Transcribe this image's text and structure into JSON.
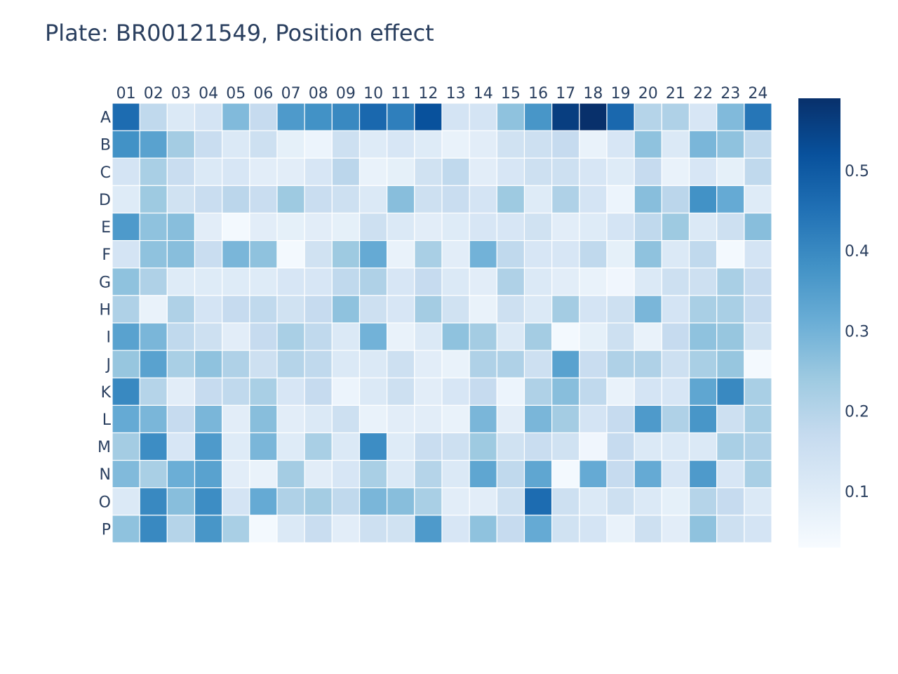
{
  "chart_data": {
    "type": "heatmap",
    "title": "Plate: BR00121549, Position effect",
    "x_categories": [
      "01",
      "02",
      "03",
      "04",
      "05",
      "06",
      "07",
      "08",
      "09",
      "10",
      "11",
      "12",
      "13",
      "14",
      "15",
      "16",
      "17",
      "18",
      "19",
      "20",
      "21",
      "22",
      "23",
      "24"
    ],
    "y_categories": [
      "A",
      "B",
      "C",
      "D",
      "E",
      "F",
      "G",
      "H",
      "I",
      "J",
      "K",
      "L",
      "M",
      "N",
      "O",
      "P"
    ],
    "z": [
      [
        0.46,
        0.18,
        0.11,
        0.13,
        0.28,
        0.17,
        0.36,
        0.38,
        0.4,
        0.47,
        0.42,
        0.52,
        0.13,
        0.13,
        0.26,
        0.37,
        0.56,
        0.59,
        0.47,
        0.2,
        0.21,
        0.12,
        0.28,
        0.44
      ],
      [
        0.38,
        0.34,
        0.23,
        0.16,
        0.11,
        0.15,
        0.08,
        0.06,
        0.15,
        0.1,
        0.12,
        0.1,
        0.07,
        0.09,
        0.14,
        0.15,
        0.17,
        0.07,
        0.12,
        0.26,
        0.11,
        0.29,
        0.26,
        0.18
      ],
      [
        0.13,
        0.22,
        0.16,
        0.11,
        0.12,
        0.09,
        0.09,
        0.12,
        0.19,
        0.07,
        0.08,
        0.14,
        0.18,
        0.09,
        0.12,
        0.15,
        0.15,
        0.12,
        0.1,
        0.17,
        0.07,
        0.12,
        0.08,
        0.18
      ],
      [
        0.1,
        0.24,
        0.14,
        0.16,
        0.19,
        0.16,
        0.24,
        0.16,
        0.15,
        0.11,
        0.27,
        0.15,
        0.16,
        0.13,
        0.24,
        0.1,
        0.21,
        0.13,
        0.06,
        0.27,
        0.19,
        0.38,
        0.32,
        0.1
      ],
      [
        0.36,
        0.26,
        0.27,
        0.09,
        0.04,
        0.09,
        0.08,
        0.09,
        0.08,
        0.15,
        0.11,
        0.09,
        0.1,
        0.12,
        0.12,
        0.14,
        0.09,
        0.1,
        0.13,
        0.18,
        0.24,
        0.11,
        0.15,
        0.27
      ],
      [
        0.13,
        0.26,
        0.27,
        0.16,
        0.29,
        0.26,
        0.04,
        0.14,
        0.24,
        0.32,
        0.07,
        0.22,
        0.09,
        0.3,
        0.18,
        0.12,
        0.12,
        0.18,
        0.08,
        0.26,
        0.11,
        0.18,
        0.04,
        0.13
      ],
      [
        0.26,
        0.21,
        0.1,
        0.1,
        0.1,
        0.1,
        0.12,
        0.12,
        0.18,
        0.21,
        0.12,
        0.17,
        0.11,
        0.09,
        0.21,
        0.11,
        0.09,
        0.07,
        0.05,
        0.11,
        0.15,
        0.15,
        0.22,
        0.17
      ],
      [
        0.21,
        0.07,
        0.21,
        0.13,
        0.17,
        0.18,
        0.14,
        0.17,
        0.26,
        0.15,
        0.12,
        0.23,
        0.14,
        0.07,
        0.15,
        0.11,
        0.23,
        0.13,
        0.15,
        0.29,
        0.13,
        0.22,
        0.22,
        0.17
      ],
      [
        0.34,
        0.29,
        0.18,
        0.15,
        0.09,
        0.17,
        0.22,
        0.18,
        0.11,
        0.3,
        0.07,
        0.11,
        0.26,
        0.23,
        0.11,
        0.23,
        0.04,
        0.08,
        0.15,
        0.07,
        0.17,
        0.26,
        0.25,
        0.14
      ],
      [
        0.25,
        0.34,
        0.22,
        0.26,
        0.21,
        0.15,
        0.2,
        0.18,
        0.11,
        0.11,
        0.15,
        0.09,
        0.07,
        0.21,
        0.21,
        0.15,
        0.34,
        0.16,
        0.21,
        0.21,
        0.15,
        0.22,
        0.25,
        0.04
      ],
      [
        0.4,
        0.2,
        0.09,
        0.17,
        0.18,
        0.22,
        0.12,
        0.17,
        0.06,
        0.11,
        0.15,
        0.09,
        0.12,
        0.17,
        0.06,
        0.21,
        0.27,
        0.18,
        0.07,
        0.13,
        0.12,
        0.33,
        0.4,
        0.22
      ],
      [
        0.32,
        0.29,
        0.17,
        0.29,
        0.09,
        0.27,
        0.09,
        0.11,
        0.15,
        0.07,
        0.09,
        0.09,
        0.07,
        0.29,
        0.09,
        0.29,
        0.23,
        0.13,
        0.17,
        0.36,
        0.21,
        0.37,
        0.15,
        0.22
      ],
      [
        0.23,
        0.39,
        0.12,
        0.36,
        0.1,
        0.29,
        0.1,
        0.22,
        0.11,
        0.39,
        0.1,
        0.16,
        0.15,
        0.24,
        0.14,
        0.16,
        0.14,
        0.05,
        0.17,
        0.11,
        0.11,
        0.11,
        0.22,
        0.21
      ],
      [
        0.28,
        0.22,
        0.31,
        0.34,
        0.09,
        0.07,
        0.23,
        0.09,
        0.12,
        0.22,
        0.11,
        0.2,
        0.11,
        0.33,
        0.18,
        0.33,
        0.04,
        0.32,
        0.17,
        0.32,
        0.12,
        0.36,
        0.12,
        0.22
      ],
      [
        0.11,
        0.4,
        0.27,
        0.39,
        0.13,
        0.32,
        0.21,
        0.23,
        0.18,
        0.29,
        0.27,
        0.22,
        0.09,
        0.09,
        0.15,
        0.46,
        0.15,
        0.11,
        0.15,
        0.11,
        0.08,
        0.2,
        0.17,
        0.11
      ],
      [
        0.26,
        0.4,
        0.2,
        0.37,
        0.22,
        0.04,
        0.11,
        0.16,
        0.09,
        0.15,
        0.14,
        0.36,
        0.12,
        0.26,
        0.17,
        0.32,
        0.14,
        0.13,
        0.07,
        0.15,
        0.09,
        0.26,
        0.15,
        0.13
      ]
    ],
    "zmin": 0.03,
    "zmax": 0.59,
    "colorscale": "Blues",
    "colorbar_ticks": [
      "0.1",
      "0.2",
      "0.3",
      "0.4",
      "0.5"
    ],
    "colorbar_tick_values": [
      0.1,
      0.2,
      0.3,
      0.4,
      0.5
    ],
    "x_axis_side": "top",
    "y_axis_order": "top-to-bottom"
  }
}
